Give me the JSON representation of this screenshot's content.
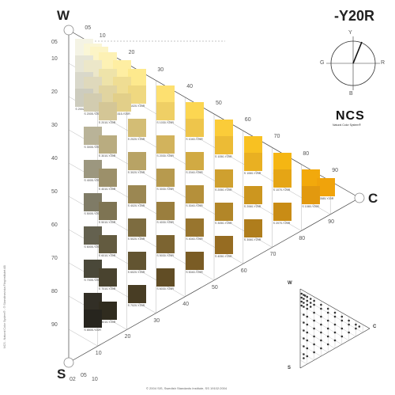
{
  "hue_code": "-Y20R",
  "corners": {
    "whiteness": "W",
    "blackness": "S",
    "chromaticness": "C"
  },
  "chromaticness_scale": [
    "05",
    "10",
    "20",
    "30",
    "40",
    "50",
    "60",
    "70",
    "80",
    "90"
  ],
  "blackness_scale": [
    "05",
    "10",
    "20",
    "30",
    "40",
    "50",
    "60",
    "70",
    "80",
    "90"
  ],
  "bottom_scale": [
    "02",
    "05",
    "10"
  ],
  "hue_circle": {
    "top": "Y",
    "right": "R",
    "bottom": "B",
    "left": "G"
  },
  "logo": {
    "mark": "NCS",
    "caption": "Natural Color System®"
  },
  "mini_triangle": {
    "white": "W",
    "black": "S",
    "chroma": "C"
  },
  "footer": "© 2004 SIS, Swedish Standards Institute, SS 19102:2004",
  "side_text": "NCS - Natural Color System® - ® Skandinaviska Färginstitutet AB",
  "samples": [
    {
      "code": "S 0502-Y20R",
      "color": "#f4f3e4"
    },
    {
      "code": "S 0505-Y20R",
      "color": "#faf6d6"
    },
    {
      "code": "S 0507-Y20R",
      "color": "#fcf4c6"
    },
    {
      "code": "S 0510-Y20R",
      "color": "#fdf1b4"
    },
    {
      "code": "S 0515-Y20R",
      "color": "#feeea2"
    },
    {
      "code": "S 0520-Y20R",
      "color": "#fde98d"
    },
    {
      "code": "S 0530-Y20R",
      "color": "#fde070"
    },
    {
      "code": "S 0540-Y20R",
      "color": "#fcd651"
    },
    {
      "code": "S 0550-Y20R",
      "color": "#fbcc39"
    },
    {
      "code": "S 0560-Y20R",
      "color": "#f8c122"
    },
    {
      "code": "S 0570-Y20R",
      "color": "#f5b613"
    },
    {
      "code": "S 0580-Y20R",
      "color": "#f2a90c"
    },
    {
      "code": "S 0585-Y20R",
      "color": "#f0a30b"
    },
    {
      "code": "S 1002-Y20R",
      "color": "#e6e5d6"
    },
    {
      "code": "S 1005-Y20R",
      "color": "#ece7c9"
    },
    {
      "code": "S 1010-Y20R",
      "color": "#eee3a9"
    },
    {
      "code": "S 1015-Y20R",
      "color": "#efdd93"
    },
    {
      "code": "S 1020-Y20R",
      "color": "#efd880"
    },
    {
      "code": "S 1030-Y20R",
      "color": "#efcf65"
    },
    {
      "code": "S 1040-Y20R",
      "color": "#eec54b"
    },
    {
      "code": "S 1050-Y20R",
      "color": "#ecbb35"
    },
    {
      "code": "S 1060-Y20R",
      "color": "#e9b022"
    },
    {
      "code": "S 1070-Y20R",
      "color": "#e5a515"
    },
    {
      "code": "S 1080-Y20R",
      "color": "#e2990f"
    },
    {
      "code": "S 1502-Y20R",
      "color": "#d9d8ca"
    },
    {
      "code": "S 1505-Y20R",
      "color": "#dfd9bc"
    },
    {
      "code": "S 1510-Y20R",
      "color": "#e1d4a0"
    },
    {
      "code": "S 1515-Y20R",
      "color": "#e2cf89"
    },
    {
      "code": "S 2002-Y20R",
      "color": "#cdccbe"
    },
    {
      "code": "S 2005-Y20R",
      "color": "#d2ccb0"
    },
    {
      "code": "S 2010-Y20R",
      "color": "#d4c696"
    },
    {
      "code": "S 2020-Y20R",
      "color": "#d3bd75"
    },
    {
      "code": "S 2030-Y20R",
      "color": "#d2b35c"
    },
    {
      "code": "S 2040-Y20R",
      "color": "#d1aa43"
    },
    {
      "code": "S 2050-Y20R",
      "color": "#cfa02f"
    },
    {
      "code": "S 2060-Y20R",
      "color": "#cc961f"
    },
    {
      "code": "S 2070-Y20R",
      "color": "#c98c15"
    },
    {
      "code": "S 3005-Y20R",
      "color": "#b9b398"
    },
    {
      "code": "S 3010-Y20R",
      "color": "#b9ac80"
    },
    {
      "code": "S 3020-Y20R",
      "color": "#b8a365"
    },
    {
      "code": "S 3030-Y20R",
      "color": "#b79a4e"
    },
    {
      "code": "S 3040-Y20R",
      "color": "#b5903a"
    },
    {
      "code": "S 3050-Y20R",
      "color": "#b28628"
    },
    {
      "code": "S 3060-Y20R",
      "color": "#af7d1c"
    },
    {
      "code": "S 4005-Y20R",
      "color": "#9c977f"
    },
    {
      "code": "S 4010-Y20R",
      "color": "#9c906a"
    },
    {
      "code": "S 4020-Y20R",
      "color": "#9b8752"
    },
    {
      "code": "S 4030-Y20R",
      "color": "#9a7e3e"
    },
    {
      "code": "S 4040-Y20R",
      "color": "#98752e"
    },
    {
      "code": "S 4050-Y20R",
      "color": "#966c22"
    },
    {
      "code": "S 5005-Y20R",
      "color": "#7f7b66"
    },
    {
      "code": "S 5010-Y20R",
      "color": "#7e7453"
    },
    {
      "code": "S 5020-Y20R",
      "color": "#7d6c40"
    },
    {
      "code": "S 5030-Y20R",
      "color": "#7c6431"
    },
    {
      "code": "S 5040-Y20R",
      "color": "#7a5c25"
    },
    {
      "code": "S 6005-Y20R",
      "color": "#64614f"
    },
    {
      "code": "S 6010-Y20R",
      "color": "#635b40"
    },
    {
      "code": "S 6020-Y20R",
      "color": "#625431"
    },
    {
      "code": "S 6030-Y20R",
      "color": "#614d25"
    },
    {
      "code": "S 7005-Y20R",
      "color": "#4a4839"
    },
    {
      "code": "S 7010-Y20R",
      "color": "#49432f"
    },
    {
      "code": "S 7020-Y20R",
      "color": "#483d24"
    },
    {
      "code": "S 8005-Y20R",
      "color": "#322f26"
    },
    {
      "code": "S 8010-Y20R",
      "color": "#302c1f"
    },
    {
      "code": "S 8505-Y20R",
      "color": "#27251e"
    }
  ]
}
